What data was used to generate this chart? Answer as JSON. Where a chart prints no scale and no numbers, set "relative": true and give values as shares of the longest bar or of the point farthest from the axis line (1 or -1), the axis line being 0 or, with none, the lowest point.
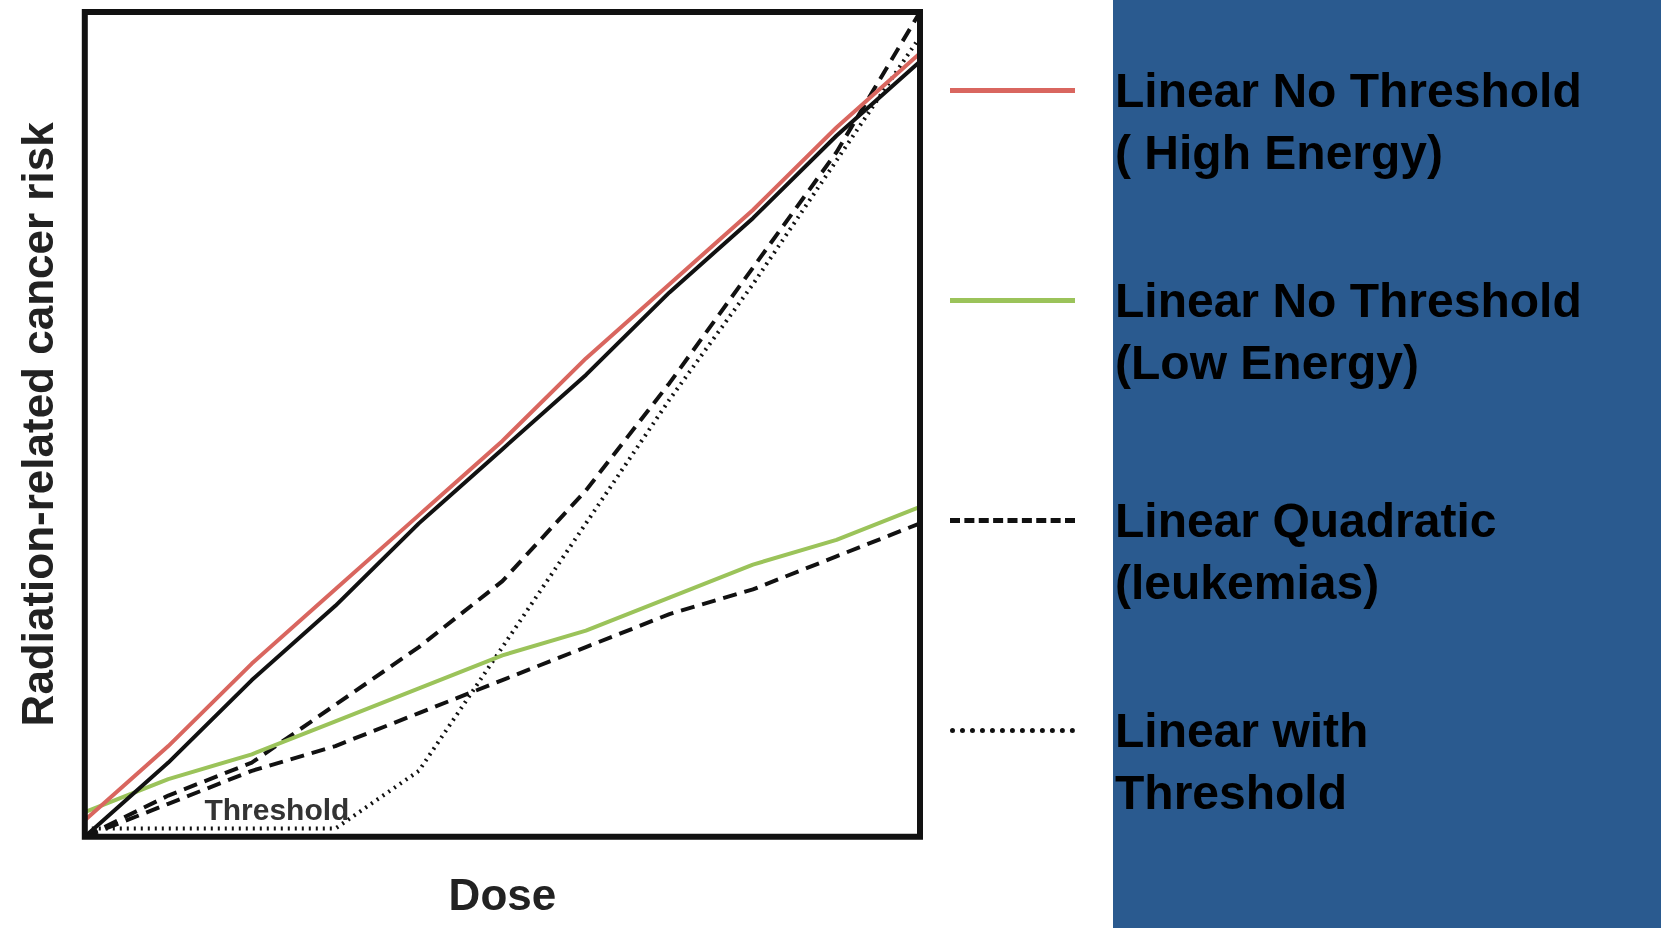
{
  "chart_data": {
    "type": "line",
    "relative": true,
    "xlabel": "Dose",
    "ylabel": "Radiation-related cancer risk",
    "grid": false,
    "legend": "right",
    "marker": "none",
    "categories": [
      null,
      null,
      null,
      null,
      null,
      null,
      null,
      null,
      null,
      null,
      null
    ],
    "series": [
      {
        "color": "#111111",
        "line_style": "solid",
        "values": [
          0,
          0.09,
          0.19,
          0.28,
          0.38,
          0.47,
          0.56,
          0.66,
          0.75,
          0.85,
          0.94
        ]
      },
      {
        "name": "Linear No Threshold\n( High Energy)",
        "color": "#d9665f",
        "line_style": "solid",
        "values": [
          0.02,
          0.11,
          0.21,
          0.3,
          0.39,
          0.48,
          0.58,
          0.67,
          0.76,
          0.86,
          0.95
        ]
      },
      {
        "color": "#111111",
        "line_style": "dashed",
        "values": [
          0,
          0.04,
          0.08,
          0.11,
          0.15,
          0.19,
          0.23,
          0.27,
          0.3,
          0.34,
          0.38
        ]
      },
      {
        "name": "Linear No Threshold\n(Low Energy)",
        "color": "#9bc35a",
        "line_style": "solid",
        "values": [
          0.03,
          0.07,
          0.1,
          0.14,
          0.18,
          0.22,
          0.25,
          0.29,
          0.33,
          0.36,
          0.4
        ]
      },
      {
        "name": "Linear Quadratic\n(leukemias)",
        "color": "#111111",
        "line_style": "dashed",
        "values": [
          0,
          0.05,
          0.09,
          0.16,
          0.23,
          0.31,
          0.42,
          0.55,
          0.69,
          0.83,
          1.0
        ]
      },
      {
        "name": "Linear with\nThreshold",
        "color": "#111111",
        "line_style": "dotted",
        "values": [
          0.01,
          0.01,
          0.01,
          0.01,
          0.08,
          0.23,
          0.38,
          0.53,
          0.67,
          0.82,
          0.97
        ]
      }
    ],
    "annotations": [
      "Threshold"
    ]
  }
}
